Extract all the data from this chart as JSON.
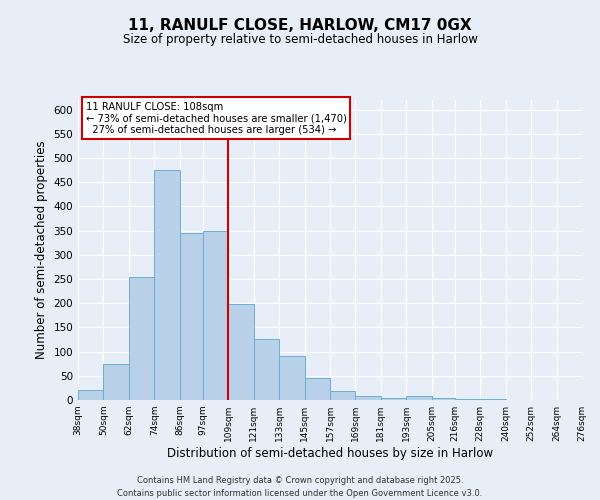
{
  "title": "11, RANULF CLOSE, HARLOW, CM17 0GX",
  "subtitle": "Size of property relative to semi-detached houses in Harlow",
  "xlabel": "Distribution of semi-detached houses by size in Harlow",
  "ylabel": "Number of semi-detached properties",
  "bin_edges": [
    38,
    50,
    62,
    74,
    86,
    97,
    109,
    121,
    133,
    145,
    157,
    169,
    181,
    193,
    205,
    216,
    228,
    240,
    252,
    264,
    276
  ],
  "bin_labels": [
    "38sqm",
    "50sqm",
    "62sqm",
    "74sqm",
    "86sqm",
    "97sqm",
    "109sqm",
    "121sqm",
    "133sqm",
    "145sqm",
    "157sqm",
    "169sqm",
    "181sqm",
    "193sqm",
    "205sqm",
    "216sqm",
    "228sqm",
    "240sqm",
    "252sqm",
    "264sqm",
    "276sqm"
  ],
  "counts": [
    20,
    75,
    255,
    475,
    345,
    350,
    198,
    127,
    90,
    45,
    18,
    8,
    5,
    8,
    5,
    2,
    2,
    1,
    0,
    1
  ],
  "bar_fill": "#b8d0e8",
  "bar_edge": "#6baed6",
  "vline_x": 109,
  "vline_color": "#cc0000",
  "annotation_title": "11 RANULF CLOSE: 108sqm",
  "annotation_line1": "← 73% of semi-detached houses are smaller (1,470)",
  "annotation_line2": "  27% of semi-detached houses are larger (534) →",
  "annotation_box_color": "white",
  "annotation_box_edge": "#cc0000",
  "ylim": [
    0,
    620
  ],
  "yticks": [
    0,
    50,
    100,
    150,
    200,
    250,
    300,
    350,
    400,
    450,
    500,
    550,
    600
  ],
  "footer1": "Contains HM Land Registry data © Crown copyright and database right 2025.",
  "footer2": "Contains public sector information licensed under the Open Government Licence v3.0.",
  "bg_color": "#e8eef7",
  "plot_bg_color": "#e8eef7",
  "grid_color": "#ffffff"
}
